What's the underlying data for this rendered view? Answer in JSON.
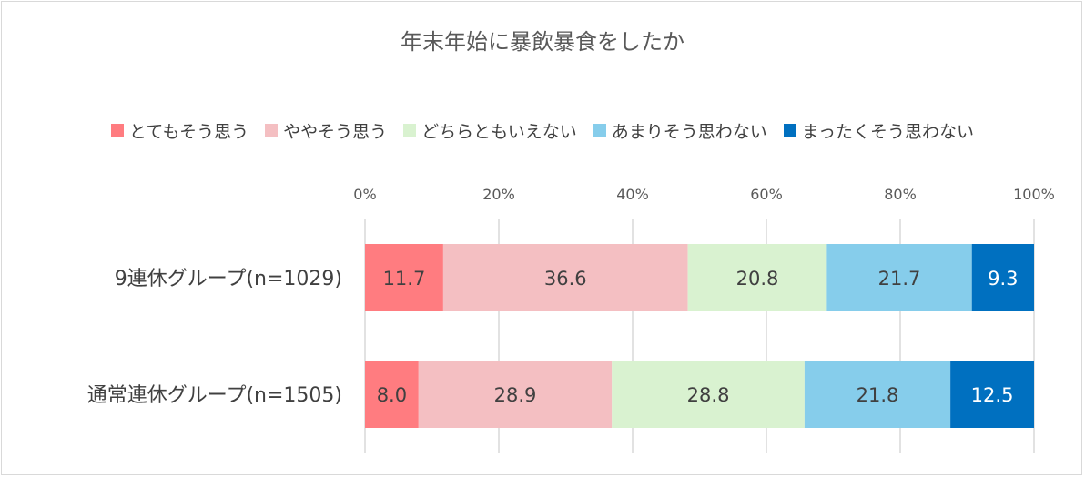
{
  "chart_data": {
    "type": "bar",
    "orientation": "horizontal-stacked-percent",
    "title": "年末年始に暴飲暴食をしたか",
    "categories": [
      "9連休グループ(n=1029)",
      "通常連休グループ(n=1505)"
    ],
    "series": [
      {
        "name": "とてもそう思う",
        "values": [
          11.7,
          8.0
        ],
        "labels": [
          "11.7",
          "8.0"
        ],
        "color": "#FF7C80",
        "label_color": "#404040"
      },
      {
        "name": "ややそう思う",
        "values": [
          36.6,
          28.9
        ],
        "labels": [
          "36.6",
          "28.9"
        ],
        "color": "#F4BFC2",
        "label_color": "#404040"
      },
      {
        "name": "どちらともいえない",
        "values": [
          20.8,
          28.8
        ],
        "labels": [
          "20.8",
          "28.8"
        ],
        "color": "#D9F2D0",
        "label_color": "#404040"
      },
      {
        "name": "あまりそう思わない",
        "values": [
          21.7,
          21.8
        ],
        "labels": [
          "21.7",
          "21.8"
        ],
        "color": "#86CDEB",
        "label_color": "#404040"
      },
      {
        "name": "まったくそう思わない",
        "values": [
          9.3,
          12.5
        ],
        "labels": [
          "9.3",
          "12.5"
        ],
        "color": "#0070C0",
        "label_color": "#FFFFFF"
      }
    ],
    "x_ticks": [
      "0%",
      "20%",
      "40%",
      "60%",
      "80%",
      "100%"
    ],
    "xlim": [
      0,
      100
    ],
    "grid": true,
    "legend_position": "top",
    "gridline_color": "#D9D9D9"
  }
}
